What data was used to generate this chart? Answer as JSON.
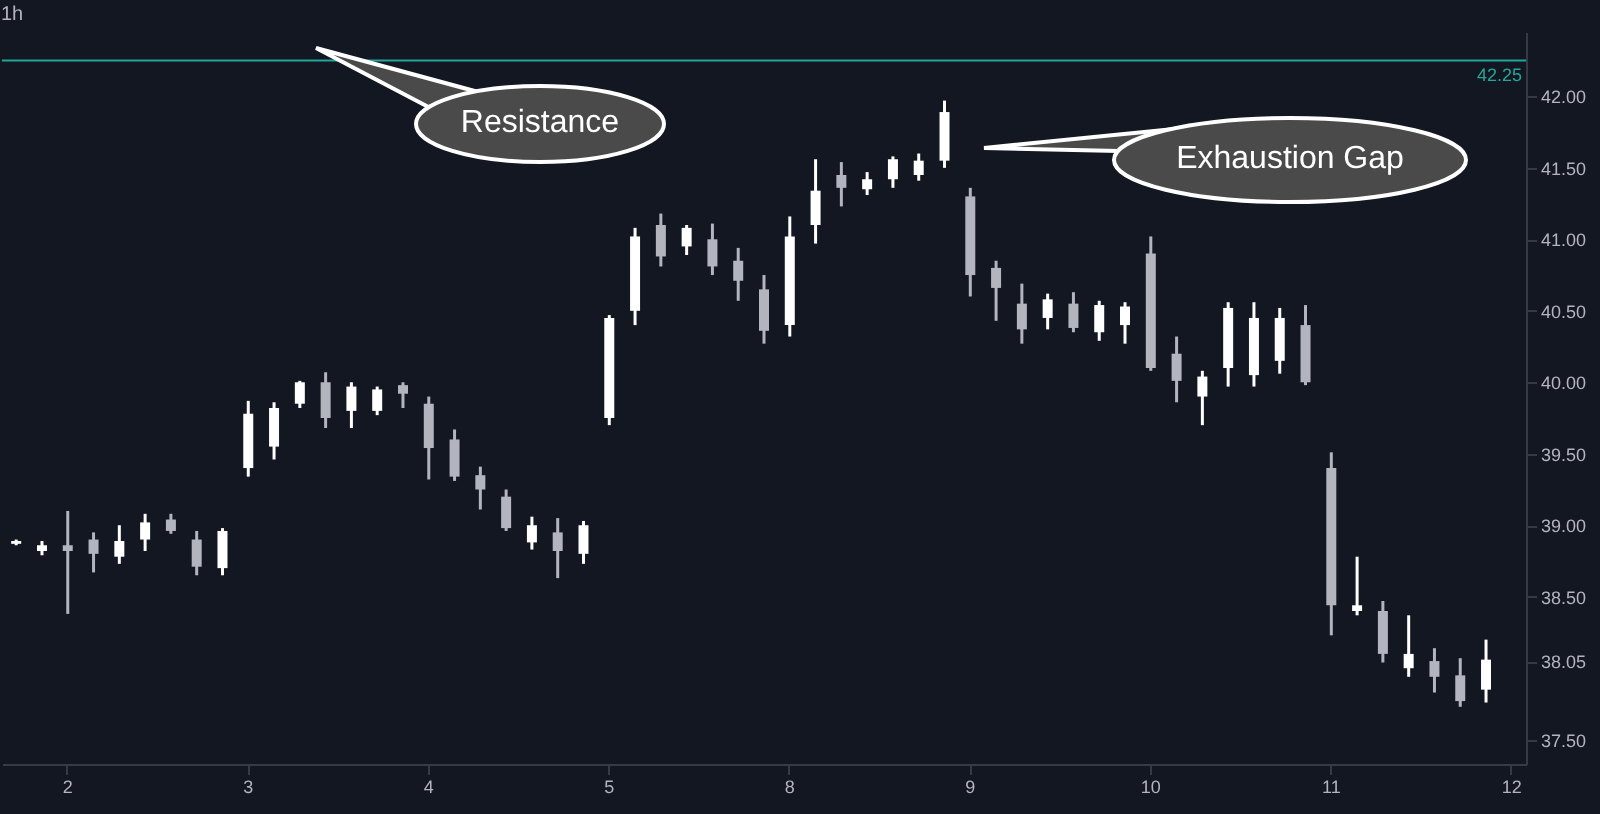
{
  "chart_data": {
    "type": "candlestick",
    "title": "1h",
    "categories": [
      null,
      null,
      "2",
      null,
      null,
      null,
      null,
      null,
      null,
      "3",
      null,
      null,
      null,
      null,
      null,
      null,
      "4",
      null,
      null,
      null,
      null,
      null,
      null,
      "5",
      null,
      null,
      null,
      null,
      null,
      null,
      "8",
      null,
      null,
      null,
      null,
      null,
      null,
      "9",
      null,
      null,
      null,
      null,
      null,
      null,
      "10",
      null,
      null,
      null,
      null,
      null,
      null,
      "11",
      null,
      null,
      null,
      null,
      null,
      null,
      "12"
    ],
    "ohlc": [
      [
        38.87,
        38.9,
        38.86,
        38.89
      ],
      [
        38.82,
        38.89,
        38.79,
        38.86
      ],
      [
        38.86,
        39.1,
        38.38,
        38.82
      ],
      [
        38.9,
        38.95,
        38.67,
        38.8
      ],
      [
        38.78,
        39.0,
        38.73,
        38.89
      ],
      [
        38.9,
        39.08,
        38.82,
        39.02
      ],
      [
        39.04,
        39.08,
        38.94,
        38.96
      ],
      [
        38.9,
        38.96,
        38.65,
        38.71
      ],
      [
        38.7,
        38.98,
        38.65,
        38.96
      ],
      [
        39.4,
        39.87,
        39.34,
        39.78
      ],
      [
        39.55,
        39.86,
        39.46,
        39.82
      ],
      [
        39.85,
        40.01,
        39.82,
        40.0
      ],
      [
        40.0,
        40.07,
        39.68,
        39.75
      ],
      [
        39.8,
        40.0,
        39.68,
        39.97
      ],
      [
        39.8,
        39.97,
        39.77,
        39.95
      ],
      [
        39.98,
        40.0,
        39.82,
        39.92
      ],
      [
        39.85,
        39.9,
        39.32,
        39.54
      ],
      [
        39.6,
        39.67,
        39.31,
        39.34
      ],
      [
        39.35,
        39.41,
        39.11,
        39.25
      ],
      [
        39.2,
        39.25,
        38.96,
        38.98
      ],
      [
        38.88,
        39.06,
        38.83,
        39.0
      ],
      [
        38.95,
        39.05,
        38.63,
        38.82
      ],
      [
        38.8,
        39.03,
        38.73,
        39.0
      ],
      [
        39.75,
        40.47,
        39.7,
        40.45
      ],
      [
        40.5,
        41.08,
        40.4,
        41.02
      ],
      [
        41.1,
        41.18,
        40.81,
        40.88
      ],
      [
        40.95,
        41.1,
        40.89,
        41.08
      ],
      [
        41.0,
        41.11,
        40.75,
        40.81
      ],
      [
        40.85,
        40.94,
        40.57,
        40.71
      ],
      [
        40.65,
        40.75,
        40.27,
        40.36
      ],
      [
        40.4,
        41.16,
        40.32,
        41.02
      ],
      [
        41.1,
        41.56,
        40.97,
        41.34
      ],
      [
        41.45,
        41.54,
        41.23,
        41.36
      ],
      [
        41.35,
        41.47,
        41.31,
        41.42
      ],
      [
        41.42,
        41.58,
        41.36,
        41.56
      ],
      [
        41.45,
        41.6,
        41.41,
        41.55
      ],
      [
        41.55,
        41.97,
        41.5,
        41.89
      ],
      [
        41.3,
        41.36,
        40.6,
        40.75
      ],
      [
        40.8,
        40.85,
        40.43,
        40.66
      ],
      [
        40.55,
        40.69,
        40.27,
        40.37
      ],
      [
        40.45,
        40.62,
        40.37,
        40.58
      ],
      [
        40.55,
        40.63,
        40.35,
        40.38
      ],
      [
        40.35,
        40.57,
        40.29,
        40.54
      ],
      [
        40.4,
        40.56,
        40.27,
        40.53
      ],
      [
        40.9,
        41.02,
        40.08,
        40.1
      ],
      [
        40.2,
        40.32,
        39.86,
        40.01
      ],
      [
        39.9,
        40.08,
        39.7,
        40.04
      ],
      [
        40.1,
        40.56,
        39.97,
        40.52
      ],
      [
        40.05,
        40.56,
        39.97,
        40.45
      ],
      [
        40.15,
        40.52,
        40.06,
        40.45
      ],
      [
        40.4,
        40.54,
        39.98,
        40.0
      ],
      [
        39.4,
        39.51,
        38.23,
        38.44
      ],
      [
        38.4,
        38.78,
        38.37,
        38.44
      ],
      [
        38.4,
        38.47,
        38.04,
        38.1
      ],
      [
        38.0,
        38.37,
        37.94,
        38.1
      ],
      [
        38.05,
        38.14,
        37.83,
        37.94
      ],
      [
        37.95,
        38.07,
        37.73,
        37.77
      ],
      [
        37.85,
        38.2,
        37.76,
        38.06
      ],
      null
    ],
    "colors": [
      "#ffffff",
      "#ffffff",
      "#b2b5be",
      "#b2b5be",
      "#ffffff",
      "#ffffff",
      "#b2b5be",
      "#b2b5be",
      "#ffffff",
      "#ffffff",
      "#ffffff",
      "#ffffff",
      "#b2b5be",
      "#ffffff",
      "#ffffff",
      "#b2b5be",
      "#b2b5be",
      "#b2b5be",
      "#b2b5be",
      "#b2b5be",
      "#ffffff",
      "#b2b5be",
      "#ffffff",
      "#ffffff",
      "#ffffff",
      "#b2b5be",
      "#ffffff",
      "#b2b5be",
      "#b2b5be",
      "#b2b5be",
      "#ffffff",
      "#ffffff",
      "#b2b5be",
      "#ffffff",
      "#ffffff",
      "#ffffff",
      "#ffffff",
      "#b2b5be",
      "#b2b5be",
      "#b2b5be",
      "#ffffff",
      "#b2b5be",
      "#ffffff",
      "#ffffff",
      "#b2b5be",
      "#b2b5be",
      "#ffffff",
      "#ffffff",
      "#ffffff",
      "#ffffff",
      "#b2b5be",
      "#b2b5be",
      "#ffffff",
      "#b2b5be",
      "#ffffff",
      "#b2b5be",
      "#b2b5be",
      "#ffffff",
      null
    ],
    "ylim": [
      37.33,
      42.45
    ],
    "yticks": [
      {
        "value": 37.5,
        "label": "37.50"
      },
      38.05,
      {
        "value": 38.5,
        "label": "38.50"
      },
      {
        "value": 39,
        "label": "39.00"
      },
      {
        "value": 39.5,
        "label": "39.50"
      },
      {
        "value": 40,
        "label": "40.00"
      },
      {
        "value": 40.5,
        "label": "40.50"
      },
      {
        "value": 41,
        "label": "41.00"
      },
      {
        "value": 41.5,
        "label": "41.50"
      },
      {
        "value": 42,
        "label": "42.00"
      }
    ],
    "ref_lines": [
      {
        "axis": "y",
        "value": 42.25,
        "label": "42.25",
        "color": "#26a69a"
      }
    ],
    "annotations": [
      "Resistance",
      "Exhaustion Gap"
    ]
  }
}
